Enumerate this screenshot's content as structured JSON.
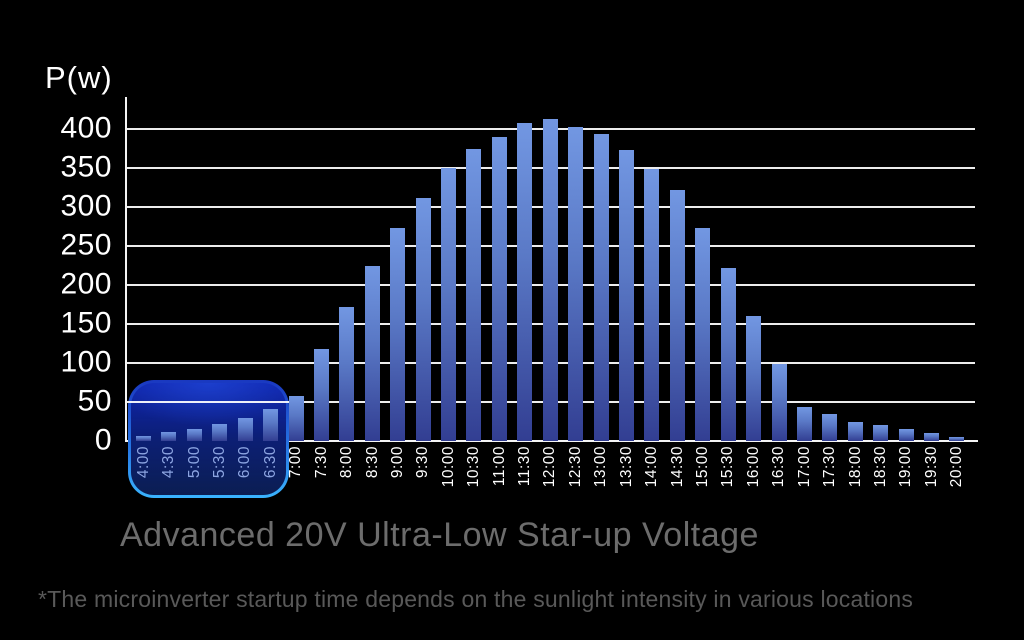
{
  "chart_data": {
    "type": "bar",
    "ylabel": "P(w)",
    "xlabel": "",
    "categories": [
      "4:00",
      "4:30",
      "5:00",
      "5:30",
      "6:00",
      "6:30",
      "7:00",
      "7:30",
      "8:00",
      "8:30",
      "9:00",
      "9:30",
      "10:00",
      "10:30",
      "11:00",
      "11:30",
      "12:00",
      "12:30",
      "13:00",
      "13:30",
      "14:00",
      "14:30",
      "15:00",
      "15:30",
      "16:00",
      "16:30",
      "17:00",
      "17:30",
      "18:00",
      "18:30",
      "19:00",
      "19:30",
      "20:00"
    ],
    "values": [
      6,
      11,
      16,
      22,
      30,
      41,
      58,
      118,
      172,
      224,
      273,
      312,
      350,
      374,
      390,
      408,
      413,
      402,
      394,
      373,
      349,
      322,
      273,
      222,
      160,
      99,
      43,
      34,
      25,
      20,
      15,
      10,
      5
    ],
    "yticks": [
      0,
      50,
      100,
      150,
      200,
      250,
      300,
      350,
      400
    ],
    "ylim": [
      0,
      430
    ],
    "grid": true,
    "legend": false,
    "highlight": {
      "from": "4:00",
      "to": "6:30"
    }
  },
  "heading": {
    "title": "Advanced 20V Ultra-Low Star-up Voltage"
  },
  "footnote": {
    "text": "*The microinverter startup time depends on the sunlight intensity in various locations"
  },
  "colors": {
    "background": "#000000",
    "bar_top": "#7297e2",
    "bar_bottom": "#323e92",
    "gridline": "#ffffff",
    "axis_text": "#ffffff",
    "highlight_border_top": "#1a38c0",
    "highlight_border_bottom": "#3ab4ff",
    "highlight_fill_top": "#0d22ac",
    "highlight_fill_bottom": "#05093a",
    "highlight_tick_text": "#8da5e2",
    "title_text": "#6c6c6c",
    "footnote_text": "#595959"
  }
}
